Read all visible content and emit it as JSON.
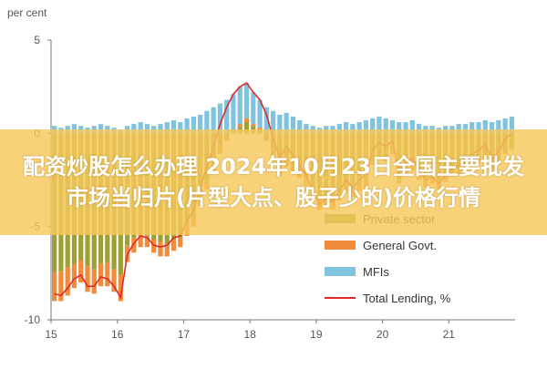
{
  "overlay": {
    "title": "配资炒股怎么办理 2024年10月23日全国主要批发市场当归片(片型大点、股子少的)价格行情"
  },
  "chart_data": {
    "type": "bar",
    "stacked": true,
    "ylabel": "per cent",
    "ylim": [
      -10,
      5
    ],
    "yticks": [
      5,
      0,
      -5,
      -10
    ],
    "xticks": [
      "15",
      "16",
      "17",
      "18",
      "19",
      "20",
      "21"
    ],
    "xstart": 2015,
    "grid": false,
    "legend_position": "bottom-right",
    "colors": {
      "private": "#9ea036",
      "general": "#f08b3c",
      "mfi": "#7fc3de",
      "total": "#e02a2a"
    },
    "series": [
      {
        "name": "Private sector",
        "values": [
          -7.5,
          -7.4,
          -7.2,
          -7.0,
          -6.8,
          -7.1,
          -7.3,
          -7.0,
          -6.9,
          -7.3,
          -7.6,
          -6.0,
          -5.6,
          -5.4,
          -5.5,
          -5.7,
          -5.8,
          -5.9,
          -5.7,
          -5.6,
          -5.0,
          -4.6,
          -3.6,
          -2.7,
          -1.9,
          -0.9,
          -0.3,
          0.1,
          0.3,
          0.6,
          0.4,
          0.2,
          -0.4,
          -1.3,
          -2.0,
          -1.6,
          -1.8,
          -2.1,
          -2.4,
          -3.0,
          -3.5,
          -3.4,
          -3.6,
          -3.2,
          -2.8,
          -3.0,
          -2.8,
          -2.6,
          -1.5,
          -1.2,
          -1.3,
          -1.0,
          -2.4,
          -2.0,
          -1.8,
          -2.2,
          -2.6,
          -2.4,
          -2.7,
          -2.3,
          -2.1,
          -2.0,
          -1.8,
          -1.5,
          -1.4,
          -1.2,
          -1.8,
          -1.5,
          -1.0,
          -0.8
        ]
      },
      {
        "name": "General Govt.",
        "values": [
          -1.5,
          -1.6,
          -1.5,
          -1.3,
          -1.2,
          -1.4,
          -1.3,
          -1.2,
          -1.3,
          -1.2,
          -1.4,
          -0.9,
          -0.8,
          -0.7,
          -0.6,
          -0.7,
          -0.8,
          -0.7,
          -0.6,
          -0.5,
          -0.5,
          -0.4,
          -0.3,
          -0.3,
          -0.2,
          -0.2,
          -0.1,
          0.1,
          0.2,
          0.2,
          0.1,
          0.1,
          0.0,
          -0.2,
          -0.3,
          -0.2,
          -0.3,
          -0.3,
          -0.4,
          -0.5,
          -0.6,
          -0.5,
          -0.5,
          -0.4,
          -0.3,
          -0.4,
          -0.3,
          -0.3,
          -0.2,
          -0.2,
          -0.2,
          -0.1,
          -0.3,
          -0.2,
          -0.2,
          -0.3,
          -0.3,
          -0.3,
          -0.3,
          -0.3,
          -0.2,
          -0.2,
          -0.2,
          -0.2,
          -0.1,
          -0.1,
          -0.2,
          -0.2,
          -0.1,
          -0.1
        ]
      },
      {
        "name": "MFIs",
        "values": [
          0.4,
          0.3,
          0.4,
          0.5,
          0.4,
          0.3,
          0.4,
          0.5,
          0.4,
          0.3,
          0.2,
          0.4,
          0.5,
          0.6,
          0.5,
          0.4,
          0.5,
          0.6,
          0.7,
          0.6,
          0.8,
          0.9,
          1.0,
          1.2,
          1.4,
          1.6,
          1.8,
          1.9,
          2.0,
          1.9,
          1.7,
          1.5,
          1.4,
          1.2,
          1.0,
          1.1,
          0.9,
          0.7,
          0.5,
          0.4,
          0.3,
          0.4,
          0.4,
          0.5,
          0.6,
          0.5,
          0.6,
          0.7,
          0.8,
          0.9,
          0.8,
          0.7,
          0.6,
          0.6,
          0.7,
          0.5,
          0.4,
          0.4,
          0.3,
          0.4,
          0.4,
          0.5,
          0.5,
          0.6,
          0.6,
          0.7,
          0.6,
          0.7,
          0.8,
          0.9
        ]
      },
      {
        "name": "Total Lending, %",
        "type": "line",
        "values": [
          -8.6,
          -8.7,
          -8.3,
          -7.8,
          -7.6,
          -8.2,
          -8.2,
          -7.7,
          -7.8,
          -8.2,
          -8.8,
          -6.5,
          -5.9,
          -5.5,
          -5.6,
          -6.0,
          -6.1,
          -6.0,
          -5.6,
          -5.5,
          -4.7,
          -4.1,
          -2.9,
          -1.8,
          -0.7,
          0.5,
          1.4,
          2.1,
          2.5,
          2.7,
          2.2,
          1.8,
          1.0,
          -0.3,
          -1.3,
          -0.7,
          -1.2,
          -1.7,
          -2.3,
          -3.1,
          -3.8,
          -3.5,
          -3.7,
          -3.1,
          -2.5,
          -2.9,
          -2.5,
          -2.2,
          -0.9,
          -0.5,
          -0.7,
          -0.4,
          -2.1,
          -1.6,
          -1.3,
          -2.0,
          -2.5,
          -2.3,
          -2.7,
          -2.2,
          -1.9,
          -1.7,
          -1.5,
          -1.1,
          -0.9,
          -0.6,
          -1.4,
          -1.0,
          -0.3,
          0.0
        ]
      }
    ]
  }
}
